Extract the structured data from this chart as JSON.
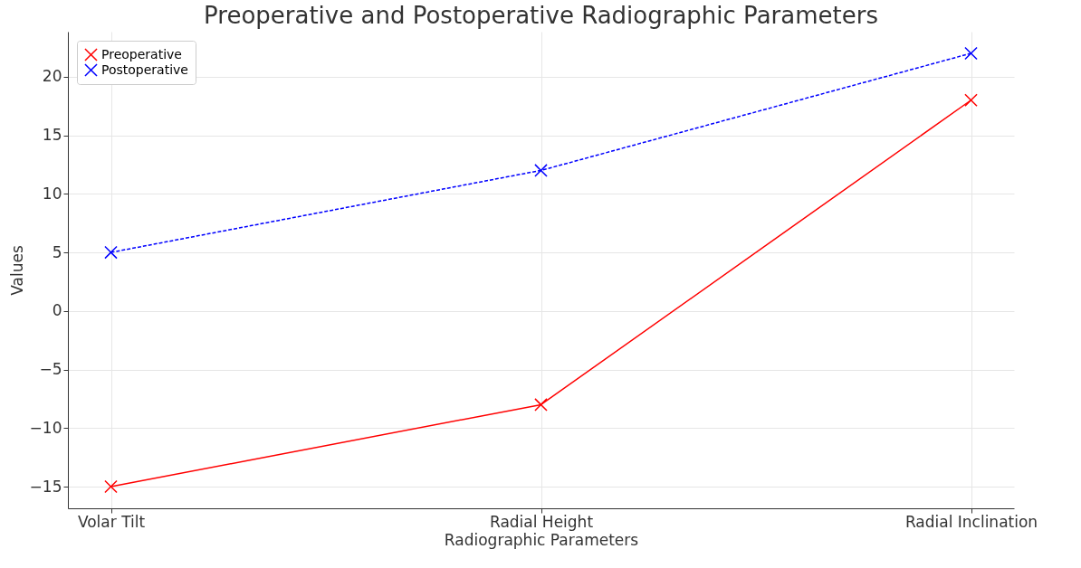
{
  "chart_data": {
    "type": "line",
    "title": "Preoperative and Postoperative Radiographic Parameters",
    "xlabel": "Radiographic Parameters",
    "ylabel": "Values",
    "categories": [
      "Volar Tilt",
      "Radial Height",
      "Radial Inclination"
    ],
    "series": [
      {
        "name": "Preoperative",
        "color": "#ff0000",
        "values": [
          -15,
          -8,
          18
        ],
        "line_style": "solid"
      },
      {
        "name": "Postoperative",
        "color": "#0000ff",
        "values": [
          5,
          12,
          22
        ],
        "line_style": "dashed"
      }
    ],
    "ylim": [
      -16.85,
      23.85
    ],
    "yticks": [
      -15,
      -10,
      -5,
      0,
      5,
      10,
      15,
      20
    ],
    "grid": true,
    "legend": "top left",
    "marker": "cross"
  }
}
